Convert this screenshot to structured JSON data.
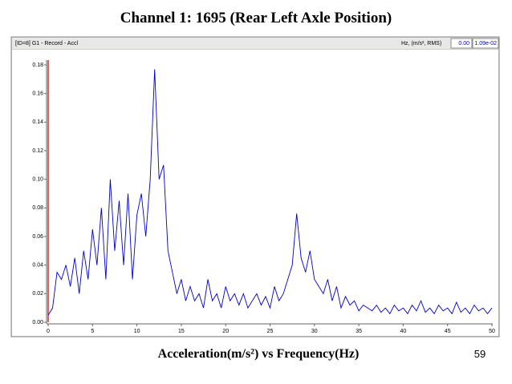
{
  "chart_data": {
    "type": "line",
    "title": "Channel 1: 1695 (Rear Left Axle Position)",
    "caption": "Acceleration(m/s²) vs Frequency(Hz)",
    "page_number": "59",
    "window_title": "[ID=8] G1  - Record - Accl",
    "units": "Hz, (m/s², RMS)",
    "readouts": [
      "0.00",
      "1.09e-02"
    ],
    "x": [
      0,
      0.5,
      1,
      1.5,
      2,
      2.5,
      3,
      3.5,
      4,
      4.5,
      5,
      5.5,
      6,
      6.5,
      7,
      7.5,
      8,
      8.5,
      9,
      9.5,
      10,
      10.5,
      11,
      11.5,
      12,
      12.5,
      13,
      13.5,
      14,
      14.5,
      15,
      15.5,
      16,
      16.5,
      17,
      17.5,
      18,
      18.5,
      19,
      19.5,
      20,
      20.5,
      21,
      21.5,
      22,
      22.5,
      23,
      23.5,
      24,
      24.5,
      25,
      25.5,
      26,
      26.5,
      27,
      27.5,
      28,
      28.5,
      29,
      29.5,
      30,
      30.5,
      31,
      31.5,
      32,
      32.5,
      33,
      33.5,
      34,
      34.5,
      35,
      35.5,
      36,
      36.5,
      37,
      37.5,
      38,
      38.5,
      39,
      39.5,
      40,
      40.5,
      41,
      41.5,
      42,
      42.5,
      43,
      43.5,
      44,
      44.5,
      45,
      45.5,
      46,
      46.5,
      47,
      47.5,
      48,
      48.5,
      49,
      49.5,
      50
    ],
    "series": [
      {
        "color": "#0000cc",
        "values": [
          0.005,
          0.01,
          0.035,
          0.03,
          0.04,
          0.025,
          0.045,
          0.02,
          0.05,
          0.03,
          0.065,
          0.04,
          0.08,
          0.03,
          0.1,
          0.05,
          0.085,
          0.04,
          0.09,
          0.03,
          0.075,
          0.09,
          0.06,
          0.1,
          0.177,
          0.1,
          0.11,
          0.05,
          0.035,
          0.02,
          0.03,
          0.015,
          0.025,
          0.015,
          0.02,
          0.01,
          0.03,
          0.015,
          0.02,
          0.01,
          0.025,
          0.015,
          0.02,
          0.012,
          0.02,
          0.01,
          0.015,
          0.02,
          0.012,
          0.018,
          0.01,
          0.025,
          0.015,
          0.02,
          0.03,
          0.04,
          0.076,
          0.045,
          0.035,
          0.05,
          0.03,
          0.025,
          0.02,
          0.03,
          0.015,
          0.025,
          0.01,
          0.018,
          0.012,
          0.015,
          0.008,
          0.012,
          0.01,
          0.008,
          0.012,
          0.007,
          0.01,
          0.006,
          0.012,
          0.008,
          0.01,
          0.006,
          0.012,
          0.008,
          0.015,
          0.007,
          0.01,
          0.006,
          0.012,
          0.008,
          0.01,
          0.006,
          0.014,
          0.007,
          0.01,
          0.006,
          0.012,
          0.008,
          0.01,
          0.006,
          0.01
        ]
      }
    ],
    "xlim": [
      0,
      50
    ],
    "xticks": [
      0,
      5,
      10,
      15,
      20,
      25,
      30,
      35,
      40,
      45,
      50
    ],
    "ylim": [
      0,
      0.18
    ],
    "yticks": [
      {
        "value": 0,
        "label": "0.00"
      },
      {
        "value": 0.02,
        "label": "0.02"
      },
      {
        "value": 0.04,
        "label": "0.04"
      },
      {
        "value": 0.06,
        "label": "0.06"
      },
      {
        "value": 0.08,
        "label": "0.08"
      },
      {
        "value": 0.1,
        "label": "0.10"
      },
      {
        "value": 0.12,
        "label": "0.12"
      },
      {
        "value": 0.14,
        "label": "0.14"
      },
      {
        "value": 0.16,
        "label": "0.16"
      },
      {
        "value": 0.18,
        "label": "0.18"
      }
    ],
    "grid": false
  }
}
